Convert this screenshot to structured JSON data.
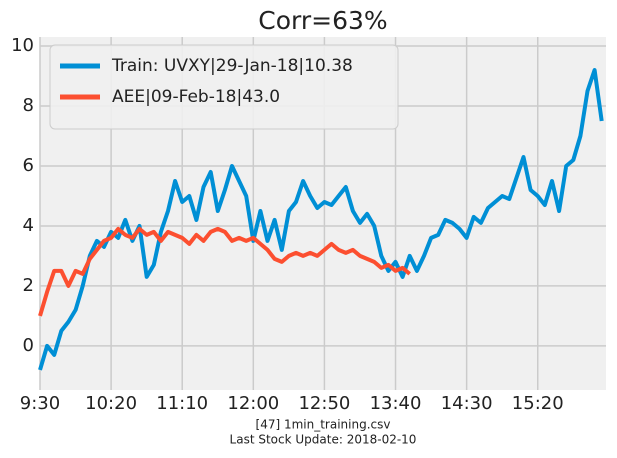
{
  "chart_data": {
    "type": "line",
    "title": "Corr=63%",
    "footer": [
      "[47] 1min_training.csv",
      "Last Stock Update: 2018-02-10"
    ],
    "xlim": [
      0,
      398
    ],
    "ylim": [
      -1.47,
      10.3
    ],
    "xticks": [
      {
        "value": 0,
        "label": "9:30"
      },
      {
        "value": 50,
        "label": "10:20"
      },
      {
        "value": 100,
        "label": "11:10"
      },
      {
        "value": 150,
        "label": "12:00"
      },
      {
        "value": 200,
        "label": "12:50"
      },
      {
        "value": 250,
        "label": "13:40"
      },
      {
        "value": 300,
        "label": "14:30"
      },
      {
        "value": 350,
        "label": "15:20"
      }
    ],
    "yticks": [
      0,
      2,
      4,
      6,
      8,
      10
    ],
    "grid": true,
    "legend": "upper left",
    "series": [
      {
        "name": "Train: UVXY|29-Jan-18|10.38",
        "color": "#008fd5",
        "x": [
          0,
          5,
          10,
          15,
          20,
          25,
          30,
          35,
          40,
          45,
          50,
          55,
          60,
          65,
          70,
          75,
          80,
          85,
          90,
          95,
          100,
          105,
          110,
          115,
          120,
          125,
          130,
          135,
          140,
          145,
          150,
          155,
          160,
          165,
          170,
          175,
          180,
          185,
          190,
          195,
          200,
          205,
          210,
          215,
          220,
          225,
          230,
          235,
          240,
          245,
          250,
          255,
          260,
          265,
          270,
          275,
          280,
          285,
          290,
          295,
          300,
          305,
          310,
          315,
          320,
          325,
          330,
          335,
          340,
          345,
          350,
          355,
          360,
          365,
          370,
          375,
          380,
          385,
          390,
          395
        ],
        "values": [
          -0.8,
          0,
          -0.3,
          0.5,
          0.8,
          1.2,
          2.0,
          3.0,
          3.5,
          3.3,
          3.8,
          3.6,
          4.2,
          3.5,
          4.0,
          2.3,
          2.7,
          3.8,
          4.5,
          5.5,
          4.8,
          5.0,
          4.2,
          5.3,
          5.8,
          4.5,
          5.2,
          6.0,
          5.5,
          5.0,
          3.5,
          4.5,
          3.5,
          4.2,
          3.2,
          4.5,
          4.8,
          5.5,
          5.0,
          4.6,
          4.8,
          4.7,
          5.0,
          5.3,
          4.5,
          4.1,
          4.4,
          4.0,
          3.0,
          2.5,
          2.8,
          2.3,
          3.0,
          2.5,
          3.0,
          3.6,
          3.7,
          4.2,
          4.1,
          3.9,
          3.6,
          4.3,
          4.1,
          4.6,
          4.8,
          5.0,
          4.9,
          5.6,
          6.3,
          5.2,
          5.0,
          4.7,
          5.5,
          4.5,
          6.0,
          6.2,
          7.0,
          8.5,
          9.2,
          7.5
        ]
      },
      {
        "name": "AEE|09-Feb-18|43.0",
        "color": "#fc4f30",
        "x": [
          0,
          5,
          10,
          15,
          20,
          25,
          30,
          35,
          40,
          45,
          50,
          55,
          60,
          65,
          70,
          75,
          80,
          85,
          90,
          95,
          100,
          105,
          110,
          115,
          120,
          125,
          130,
          135,
          140,
          145,
          150,
          155,
          160,
          165,
          170,
          175,
          180,
          185,
          190,
          195,
          200,
          205,
          210,
          215,
          220,
          225,
          230,
          235,
          240,
          245,
          250,
          255,
          260
        ],
        "values": [
          1.0,
          1.8,
          2.5,
          2.5,
          2.0,
          2.5,
          2.4,
          2.9,
          3.2,
          3.5,
          3.6,
          3.9,
          3.7,
          3.6,
          3.9,
          3.7,
          3.8,
          3.5,
          3.8,
          3.7,
          3.6,
          3.4,
          3.7,
          3.5,
          3.8,
          3.9,
          3.8,
          3.5,
          3.6,
          3.5,
          3.6,
          3.4,
          3.2,
          2.9,
          2.8,
          3.0,
          3.1,
          3.0,
          3.1,
          3.0,
          3.2,
          3.4,
          3.2,
          3.1,
          3.2,
          3.0,
          2.9,
          2.8,
          2.6,
          2.7,
          2.5,
          2.6,
          2.4
        ]
      }
    ]
  }
}
